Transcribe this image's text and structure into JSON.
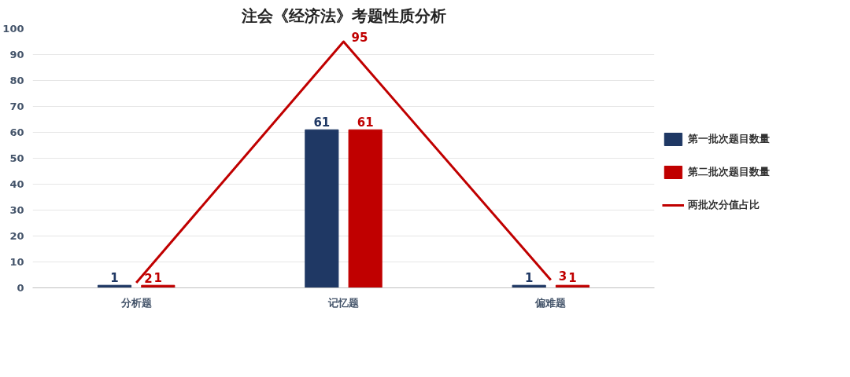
{
  "chart_data": {
    "type": "bar",
    "title": "注会《经济法》考题性质分析",
    "categories": [
      "分析题",
      "记忆题",
      "偏难题"
    ],
    "series": [
      {
        "name": "第一批次题目数量",
        "color": "#1f3864",
        "values": [
          1,
          61,
          1
        ]
      },
      {
        "name": "第二批次题目数量",
        "color": "#c00000",
        "values": [
          1,
          61,
          1
        ]
      },
      {
        "name": "两批次分值占比",
        "type": "line",
        "color": "#c00000",
        "values": [
          2,
          95,
          3
        ]
      }
    ],
    "ylim": [
      0,
      100
    ],
    "yticks": [
      0,
      10,
      20,
      30,
      40,
      50,
      60,
      70,
      80,
      90,
      100
    ],
    "grid": "y",
    "legend": "right",
    "data_labels": true
  }
}
